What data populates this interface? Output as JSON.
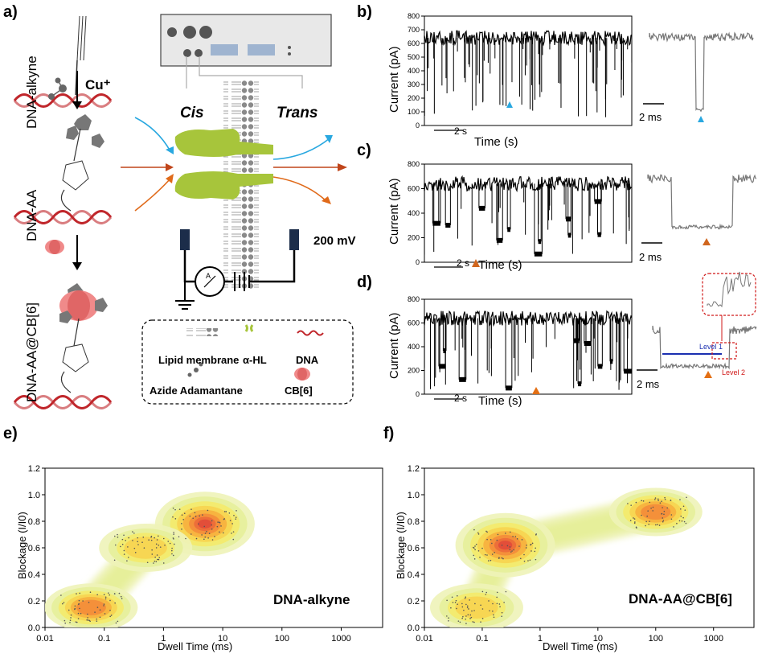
{
  "panels": {
    "a": "a)",
    "b": "b)",
    "c": "c)",
    "d": "d)",
    "e": "e)",
    "f": "f)"
  },
  "panel_a": {
    "mol1": "DNA-alkyne",
    "reagent": "Cu⁺",
    "mol2": "DNA-AA",
    "mol3": "DNA-AA@CB[6]",
    "cis": "Cis",
    "trans": "Trans",
    "voltage": "200 mV",
    "legend": {
      "lipid": "Lipid membrane",
      "ahl": "α-HL",
      "dna": "DNA",
      "azide": "Azide Adamantane",
      "cb6": "CB[6]"
    }
  },
  "traces": {
    "ylabel": "Current (pA)",
    "xlabel": "Time (s)",
    "scale_time": "2 s",
    "scale_zoom": "2 ms",
    "yticks": [
      "0",
      "100",
      "200",
      "300",
      "400",
      "500",
      "600",
      "700",
      "800"
    ],
    "yticks_c": [
      "0",
      "200",
      "400",
      "600",
      "800"
    ],
    "level1": "Level 1",
    "level2": "Level 2",
    "colors": {
      "b": "#29a8e0",
      "c": "#d0661f",
      "d": "#e36f14"
    }
  },
  "chart_data": [
    {
      "type": "heatmap",
      "title": "DNA-alkyne",
      "xlabel": "Dwell Time (ms)",
      "ylabel": "Blockage (I/I0)",
      "x_scale": "log",
      "xlim": [
        0.01,
        5000
      ],
      "ylim": [
        0,
        1.2
      ],
      "xticks": [
        "0.01",
        "0.1",
        "1",
        "10",
        "100",
        "1000"
      ],
      "yticks": [
        "0.0",
        "0.2",
        "0.4",
        "0.6",
        "0.8",
        "1.0",
        "1.2"
      ],
      "clusters": [
        {
          "x": 5,
          "y": 0.78,
          "peak": "high"
        },
        {
          "x": 0.06,
          "y": 0.15,
          "peak": "medium"
        },
        {
          "x": 0.5,
          "y": 0.6,
          "peak": "low"
        }
      ]
    },
    {
      "type": "heatmap",
      "title": "DNA-AA@CB[6]",
      "xlabel": "Dwell Time (ms)",
      "ylabel": "Blockage (I/I0)",
      "x_scale": "log",
      "xlim": [
        0.01,
        5000
      ],
      "ylim": [
        0,
        1.2
      ],
      "xticks": [
        "0.01",
        "0.1",
        "1",
        "10",
        "100",
        "1000"
      ],
      "yticks": [
        "0.0",
        "0.2",
        "0.4",
        "0.6",
        "0.8",
        "1.0",
        "1.2"
      ],
      "clusters": [
        {
          "x": 0.25,
          "y": 0.62,
          "peak": "high"
        },
        {
          "x": 100,
          "y": 0.87,
          "peak": "medium"
        },
        {
          "x": 0.08,
          "y": 0.15,
          "peak": "low"
        }
      ]
    }
  ]
}
